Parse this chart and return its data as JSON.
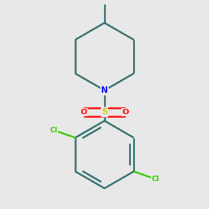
{
  "background_color": "#e8e8e8",
  "bond_color": "#2d6b6b",
  "bond_width": 1.8,
  "atom_colors": {
    "N": "#0000ee",
    "S": "#cccc00",
    "O": "#ff0000",
    "Cl": "#33cc00",
    "C": "#2d6b6b"
  },
  "figsize": [
    3.0,
    3.0
  ],
  "dpi": 100,
  "xlim": [
    0.05,
    0.95
  ],
  "ylim": [
    0.02,
    0.98
  ]
}
